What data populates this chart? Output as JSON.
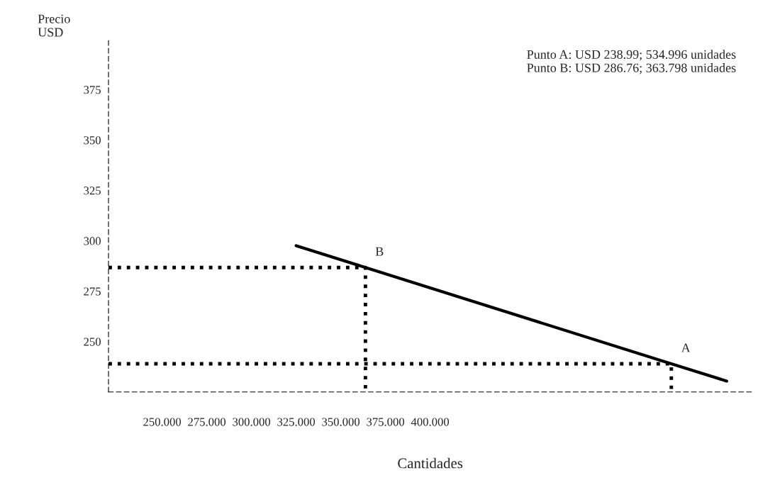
{
  "chart_data": {
    "type": "line",
    "xlabel": "Cantidades",
    "ylabel": "Precio\nUSD",
    "xlim": [
      220,
      580
    ],
    "ylim": [
      225,
      400
    ],
    "xticks": [
      {
        "value": 250,
        "label": "250.000"
      },
      {
        "value": 275,
        "label": "275.000"
      },
      {
        "value": 300,
        "label": "300.000"
      },
      {
        "value": 325,
        "label": "325.000"
      },
      {
        "value": 350,
        "label": "350.000"
      },
      {
        "value": 375,
        "label": "375.000"
      },
      {
        "value": 400,
        "label": "400.000"
      }
    ],
    "yticks": [
      250,
      275,
      300,
      325,
      350,
      375
    ],
    "series": [
      {
        "color": "#000000",
        "line_style": "solid",
        "x": [
          325,
          363.798,
          534.996,
          566
        ],
        "values": [
          297.6,
          286.76,
          238.99,
          230.4
        ]
      },
      {
        "color": "#000000",
        "line_style": "dotted",
        "x": [
          220,
          363.798,
          363.798
        ],
        "values": [
          286.76,
          286.76,
          225
        ]
      },
      {
        "color": "#000000",
        "line_style": "dotted",
        "x": [
          220,
          534.996,
          534.996
        ],
        "values": [
          238.99,
          238.99,
          225
        ]
      }
    ],
    "annotations": [
      "Punto A: USD 238.99; 534.996 unidades\nPunto B: USD 286.76; 363.798 unidades",
      {
        "text": "A",
        "x": 534.996,
        "y": 238.99
      },
      {
        "text": "B",
        "x": 363.798,
        "y": 286.76
      }
    ],
    "grid": false,
    "legend": false,
    "marker": "none"
  }
}
